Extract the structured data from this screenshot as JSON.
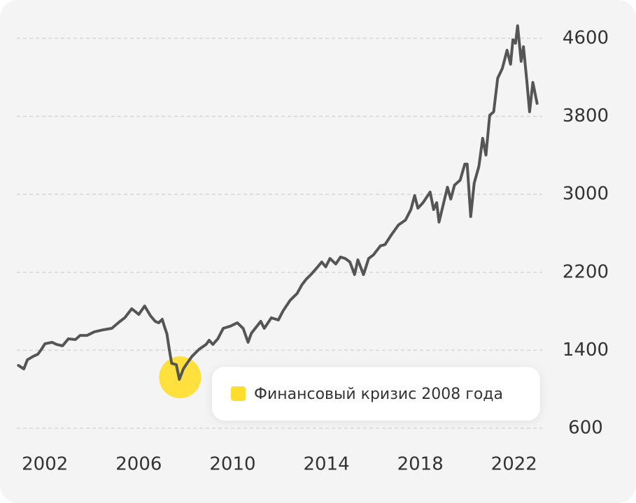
{
  "chart_data": {
    "type": "line",
    "x": [
      2000.87,
      2001.1,
      2001.25,
      2001.5,
      2001.7,
      2001.85,
      2002.0,
      2002.3,
      2002.5,
      2002.75,
      2003.0,
      2003.3,
      2003.5,
      2003.8,
      2004.1,
      2004.5,
      2004.85,
      2005.2,
      2005.4,
      2005.7,
      2006.0,
      2006.25,
      2006.5,
      2006.7,
      2006.85,
      2007.0,
      2007.1,
      2007.2,
      2007.3,
      2007.4,
      2007.6,
      2007.73,
      2007.9,
      2008.06,
      2008.27,
      2008.57,
      2008.87,
      2009.0,
      2009.16,
      2009.37,
      2009.6,
      2009.9,
      2010.2,
      2010.45,
      2010.66,
      2010.8,
      2011.2,
      2011.35,
      2011.65,
      2011.95,
      2012.15,
      2012.45,
      2012.75,
      2012.95,
      2013.13,
      2013.34,
      2013.55,
      2013.8,
      2013.97,
      2014.15,
      2014.4,
      2014.6,
      2014.8,
      2015.0,
      2015.2,
      2015.34,
      2015.58,
      2015.8,
      2016.0,
      2016.3,
      2016.5,
      2016.75,
      2017.07,
      2017.37,
      2017.6,
      2017.76,
      2017.9,
      2018.12,
      2018.42,
      2018.57,
      2018.7,
      2018.8,
      2019.0,
      2019.16,
      2019.3,
      2019.46,
      2019.7,
      2019.9,
      2020.0,
      2020.15,
      2020.3,
      2020.5,
      2020.66,
      2020.8,
      2020.96,
      2021.13,
      2021.3,
      2021.5,
      2021.7,
      2021.85,
      2021.95,
      2022.06,
      2022.15,
      2022.3,
      2022.4,
      2022.54,
      2022.66,
      2022.8,
      2022.98
    ],
    "series": [
      {
        "color": "#555555",
        "values": [
          1245,
          1209,
          1302,
          1338,
          1360,
          1410,
          1467,
          1482,
          1460,
          1446,
          1518,
          1510,
          1553,
          1553,
          1589,
          1611,
          1625,
          1697,
          1733,
          1826,
          1768,
          1854,
          1754,
          1697,
          1682,
          1718,
          1639,
          1568,
          1410,
          1267,
          1252,
          1102,
          1209,
          1267,
          1338,
          1410,
          1460,
          1503,
          1460,
          1518,
          1625,
          1647,
          1682,
          1625,
          1482,
          1575,
          1697,
          1625,
          1733,
          1711,
          1804,
          1912,
          1983,
          2070,
          2127,
          2177,
          2234,
          2306,
          2256,
          2342,
          2285,
          2357,
          2342,
          2306,
          2177,
          2328,
          2177,
          2342,
          2378,
          2471,
          2485,
          2578,
          2686,
          2736,
          2844,
          2987,
          2858,
          2915,
          3023,
          2844,
          2915,
          2715,
          2915,
          3073,
          2951,
          3094,
          3145,
          3310,
          3310,
          2772,
          3116,
          3288,
          3575,
          3403,
          3811,
          3847,
          4191,
          4292,
          4478,
          4335,
          4586,
          4550,
          4729,
          4364,
          4514,
          4170,
          3847,
          4148,
          3933
        ]
      }
    ],
    "xlim": [
      2000.8,
      2023.2
    ],
    "xticks": [
      2002,
      2006,
      2010,
      2014,
      2018,
      2022
    ],
    "ylim": [
      500,
      4800
    ],
    "yticks": [
      600,
      1400,
      2200,
      3000,
      3800,
      4600
    ],
    "grid": true,
    "annotation": {
      "text": "Финансовый кризис 2008 года",
      "x": 2007.76,
      "y": 1123,
      "color": "#ffdd2d"
    }
  }
}
